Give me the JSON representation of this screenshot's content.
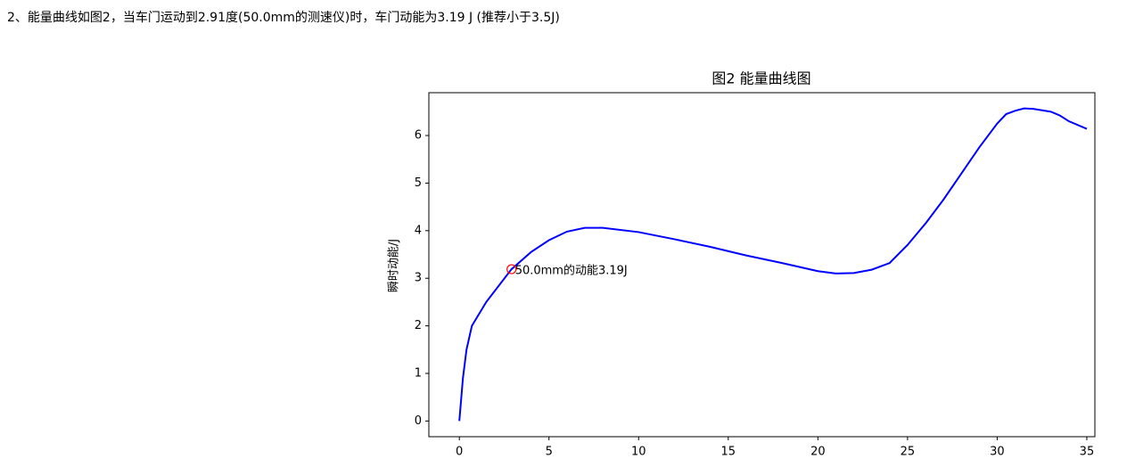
{
  "text": "2、能量曲线如图2，当车门运动到2.91度(50.0mm的测速仪)时，车门动能为3.19 J (推荐小于3.5J)",
  "chart_data": {
    "type": "line",
    "title": "图2 能量曲线图",
    "y_label": "瞬时动能/J",
    "x": [
      0,
      0.2,
      0.4,
      0.7,
      1.5,
      2.91,
      4,
      5,
      6,
      7,
      8,
      10,
      12,
      14,
      16,
      18,
      20,
      21,
      22,
      23,
      24,
      25,
      26,
      27,
      28,
      29,
      30,
      30.5,
      31,
      31.5,
      32,
      33,
      33.5,
      34,
      35
    ],
    "series": [
      {
        "color": "#0000ff",
        "values": [
          0,
          0.9,
          1.5,
          2.0,
          2.5,
          3.19,
          3.55,
          3.8,
          3.98,
          4.06,
          4.06,
          3.97,
          3.82,
          3.66,
          3.48,
          3.32,
          3.15,
          3.1,
          3.11,
          3.18,
          3.32,
          3.7,
          4.15,
          4.65,
          5.2,
          5.75,
          6.25,
          6.45,
          6.52,
          6.57,
          6.56,
          6.5,
          6.42,
          6.3,
          6.14
        ]
      }
    ],
    "annotation": {
      "x": 2.91,
      "y": 3.19,
      "text": "50.0mm的动能3.19J",
      "color": "#ff0000"
    },
    "xlim": [
      -1.7,
      35.45
    ],
    "ylim": [
      -0.33,
      6.9
    ],
    "xticks": [
      0,
      5,
      10,
      15,
      20,
      25,
      30,
      35
    ],
    "yticks": [
      0,
      1,
      2,
      3,
      4,
      5,
      6
    ]
  }
}
